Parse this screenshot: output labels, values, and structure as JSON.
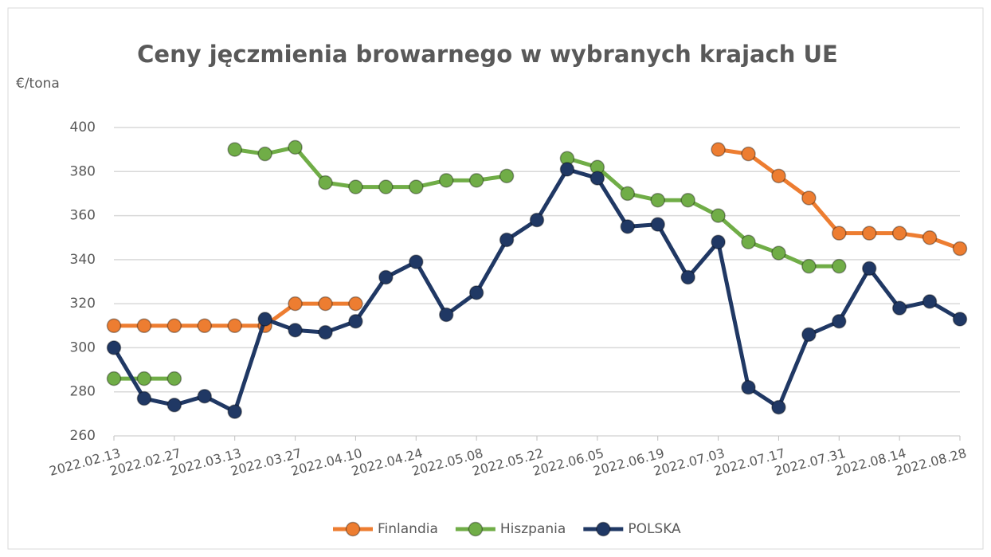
{
  "chart_data": {
    "type": "line",
    "title": "Ceny jęczmienia browarnego w wybranych krajach  UE",
    "y_label": "€/tona",
    "categories": [
      "2022.02.13",
      null,
      "2022.02.27",
      null,
      "2022.03.13",
      null,
      "2022.03.27",
      null,
      "2022.04.10",
      null,
      "2022.04.24",
      null,
      "2022.05.08",
      null,
      "2022.05.22",
      null,
      "2022.06.05",
      null,
      "2022.06.19",
      null,
      "2022.07.03",
      null,
      "2022.07.17",
      null,
      "2022.07.31",
      null,
      "2022.08.14",
      null,
      "2022.08.28"
    ],
    "ylim": [
      260,
      400
    ],
    "yticks": [
      260,
      280,
      300,
      320,
      340,
      360,
      380,
      400
    ],
    "grid": true,
    "legend": "bottom",
    "series": [
      {
        "name": "Finlandia",
        "color": "#ed7d31",
        "values": [
          310,
          310,
          310,
          310,
          310,
          310,
          320,
          320,
          320,
          null,
          null,
          null,
          null,
          null,
          null,
          null,
          null,
          null,
          null,
          null,
          390,
          388,
          378,
          368,
          352,
          352,
          352,
          350,
          345
        ]
      },
      {
        "name": "Hiszpania",
        "color": "#70ad47",
        "values": [
          286,
          286,
          286,
          null,
          390,
          388,
          391,
          375,
          373,
          373,
          373,
          376,
          376,
          378,
          null,
          386,
          382,
          370,
          367,
          367,
          360,
          348,
          343,
          337,
          337,
          null,
          null,
          null,
          null
        ]
      },
      {
        "name": "POLSKA",
        "color": "#203864",
        "values": [
          300,
          277,
          274,
          278,
          271,
          313,
          308,
          307,
          312,
          332,
          339,
          315,
          325,
          349,
          358,
          381,
          377,
          355,
          356,
          332,
          348,
          282,
          273,
          306,
          312,
          336,
          318,
          321,
          313
        ]
      }
    ]
  }
}
